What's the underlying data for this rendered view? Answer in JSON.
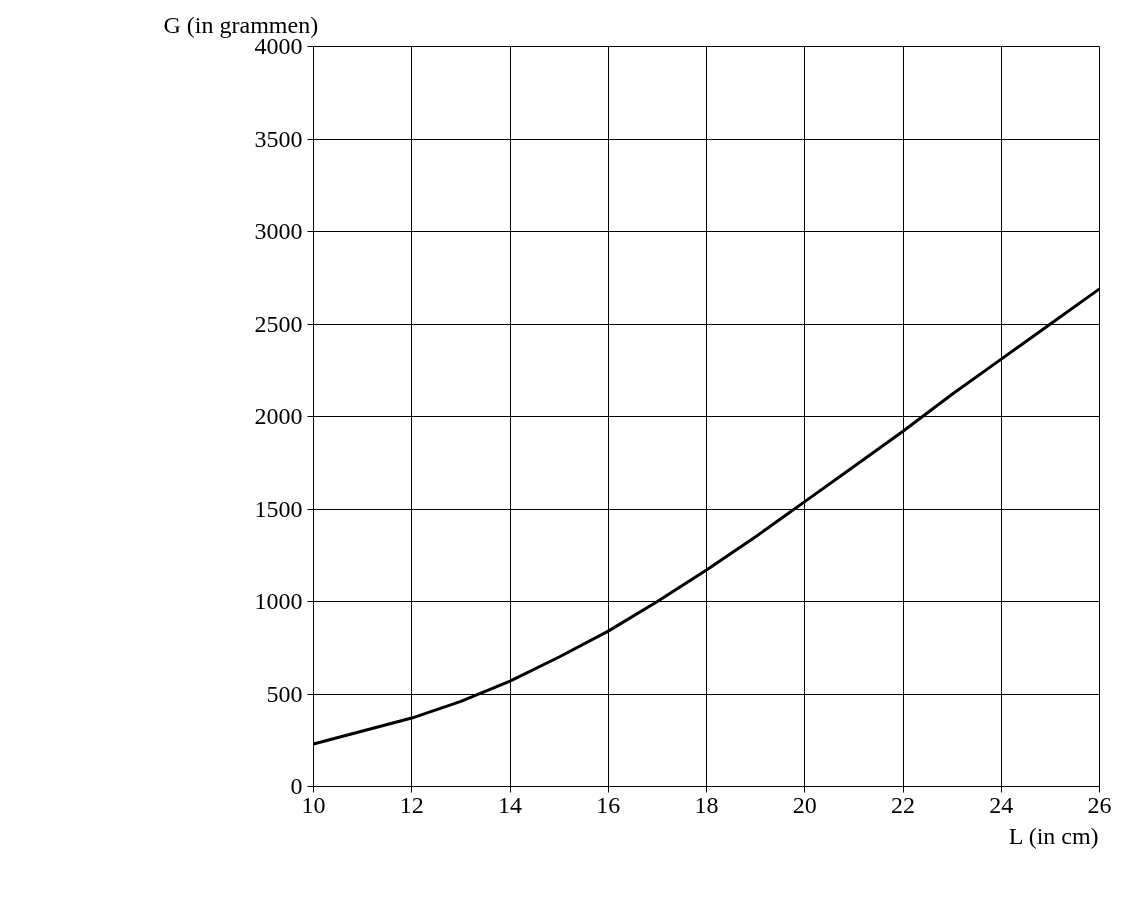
{
  "chart_data": {
    "type": "line",
    "xlabel": "L (in cm)",
    "ylabel": "G (in grammen)",
    "x": [
      10,
      11,
      12,
      13,
      14,
      15,
      16,
      17,
      18,
      19,
      20,
      21,
      22,
      23,
      24,
      25,
      26
    ],
    "series": [
      {
        "color": "#000000",
        "values": [
          230,
          300,
          370,
          460,
          570,
          700,
          840,
          1000,
          1170,
          1350,
          1540,
          1730,
          1920,
          2120,
          2310,
          2500,
          2690
        ]
      }
    ],
    "xlim": [
      10,
      26
    ],
    "ylim": [
      0,
      4000
    ],
    "xticks": [
      10,
      12,
      14,
      16,
      18,
      20,
      22,
      24,
      26
    ],
    "yticks": [
      0,
      500,
      1000,
      1500,
      2000,
      2500,
      3000,
      3500,
      4000
    ],
    "grid": true,
    "marker": "none",
    "line_style": "solid"
  }
}
